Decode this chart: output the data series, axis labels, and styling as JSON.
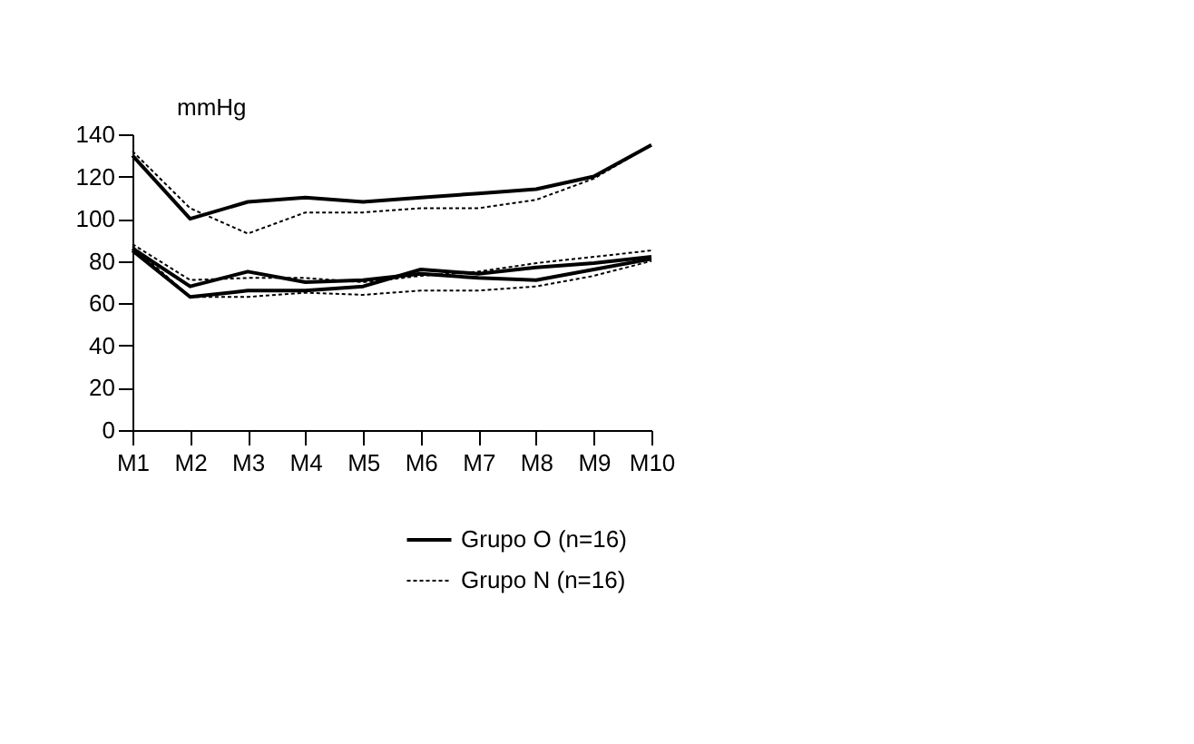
{
  "chart_data": {
    "type": "line",
    "ylabel": "mmHg",
    "categories": [
      "M1",
      "M2",
      "M3",
      "M4",
      "M5",
      "M6",
      "M7",
      "M8",
      "M9",
      "M10"
    ],
    "series": [
      {
        "name": "Grupo O (n=16)",
        "color": "#000000",
        "line_style": "solid",
        "values": [
          130,
          100,
          108,
          110,
          108,
          110,
          112,
          114,
          120,
          135
        ]
      },
      {
        "color": "#000000",
        "line_style": "solid",
        "values": [
          86,
          68,
          75,
          70,
          71,
          74,
          72,
          71,
          76,
          81
        ]
      },
      {
        "color": "#000000",
        "line_style": "solid",
        "values": [
          85,
          63,
          66,
          66,
          68,
          76,
          74,
          77,
          79,
          82
        ]
      },
      {
        "name": "Grupo N (n=16)",
        "color": "#000000",
        "line_style": "dotted",
        "values": [
          132,
          105,
          93,
          103,
          103,
          105,
          105,
          109,
          119,
          135
        ]
      },
      {
        "color": "#000000",
        "line_style": "dotted",
        "values": [
          88,
          71,
          72,
          72,
          70,
          73,
          75,
          79,
          82,
          85
        ]
      },
      {
        "color": "#000000",
        "line_style": "dotted",
        "values": [
          87,
          63,
          63,
          65,
          64,
          66,
          66,
          68,
          73,
          80
        ]
      }
    ],
    "ylim": [
      0,
      140
    ],
    "yticks": [
      0,
      20,
      40,
      60,
      80,
      100,
      120,
      140
    ],
    "grid": false,
    "legend": "bottom"
  }
}
